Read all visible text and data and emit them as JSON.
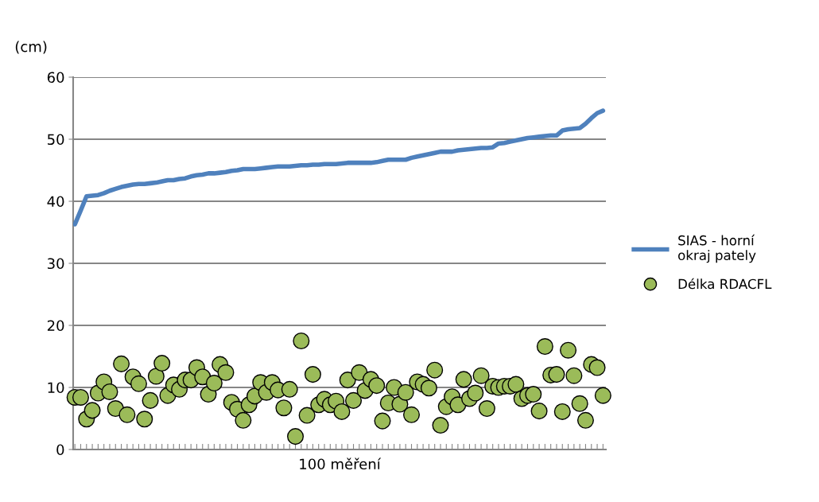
{
  "chart_data": {
    "type": "line",
    "ylabel": "(cm)",
    "xlabel": "100 měření",
    "categories": [
      null,
      null,
      null,
      null,
      null,
      null,
      null,
      null,
      null,
      null,
      null,
      null,
      null,
      null,
      null,
      null,
      null,
      null,
      null,
      null,
      null,
      null,
      null,
      null,
      null,
      null,
      null,
      null,
      null,
      null,
      null,
      null,
      null,
      null,
      null,
      null,
      null,
      null,
      null,
      null,
      null,
      null,
      null,
      null,
      null,
      null,
      null,
      null,
      null,
      null,
      null,
      null,
      null,
      null,
      null,
      null,
      null,
      null,
      null,
      null,
      null,
      null,
      null,
      null,
      null,
      null,
      null,
      null,
      null,
      null,
      null,
      null,
      null,
      null,
      null,
      null,
      null,
      null,
      null,
      null,
      null,
      null,
      null,
      null,
      null,
      null,
      null,
      null,
      null,
      null,
      null,
      null
    ],
    "ylim": [
      0,
      60
    ],
    "yticks": [
      0,
      10,
      20,
      30,
      40,
      50,
      60
    ],
    "grid": "y",
    "legend": "right",
    "tick_labels": "y",
    "series": [
      {
        "name": "SIAS - horní\nokraj pately",
        "color": "#4f81bd",
        "marker": "none",
        "values": [
          36.3,
          38.5,
          40.8,
          40.9,
          41.0,
          41.3,
          41.7,
          42.0,
          42.3,
          42.5,
          42.7,
          42.8,
          42.8,
          42.9,
          43.0,
          43.2,
          43.4,
          43.4,
          43.6,
          43.7,
          44.0,
          44.2,
          44.3,
          44.5,
          44.5,
          44.6,
          44.7,
          44.9,
          45.0,
          45.2,
          45.2,
          45.2,
          45.3,
          45.4,
          45.5,
          45.6,
          45.6,
          45.6,
          45.7,
          45.8,
          45.8,
          45.9,
          45.9,
          46.0,
          46.0,
          46.0,
          46.1,
          46.2,
          46.2,
          46.2,
          46.2,
          46.2,
          46.3,
          46.5,
          46.7,
          46.7,
          46.7,
          46.7,
          47.0,
          47.2,
          47.4,
          47.6,
          47.8,
          48.0,
          48.0,
          48.0,
          48.2,
          48.3,
          48.4,
          48.5,
          48.6,
          48.6,
          48.7,
          49.3,
          49.4,
          49.6,
          49.8,
          50.0,
          50.2,
          50.3,
          50.4,
          50.5,
          50.6,
          50.6,
          51.4,
          51.6,
          51.7,
          51.8,
          52.5,
          53.4,
          54.2,
          54.6
        ]
      },
      {
        "name": "Délka RDACFL",
        "type": "scatter",
        "color": "#9bbb59",
        "marker": "circle",
        "values": [
          8.4,
          8.4,
          4.9,
          6.3,
          9.1,
          10.9,
          9.3,
          6.6,
          13.8,
          5.6,
          11.7,
          10.6,
          4.9,
          7.9,
          11.8,
          13.9,
          8.7,
          10.4,
          9.7,
          11.2,
          11.2,
          13.2,
          11.7,
          8.9,
          10.7,
          13.7,
          12.4,
          7.6,
          6.5,
          4.7,
          7.2,
          8.6,
          10.8,
          9.2,
          10.8,
          9.6,
          6.7,
          9.7,
          2.1,
          17.5,
          5.5,
          12.1,
          7.2,
          8.1,
          7.2,
          7.8,
          6.1,
          11.2,
          7.9,
          12.4,
          9.5,
          11.3,
          10.3,
          4.6,
          7.5,
          10.0,
          7.3,
          9.2,
          5.6,
          10.9,
          10.5,
          9.9,
          12.8,
          3.9,
          6.9,
          8.5,
          7.2,
          11.3,
          8.2,
          9.1,
          11.9,
          6.6,
          10.2,
          10.0,
          10.2,
          10.2,
          10.5,
          8.2,
          8.7,
          8.9,
          6.2,
          16.6,
          12.0,
          12.1,
          6.1,
          16.0,
          11.9,
          7.4,
          4.7,
          13.7,
          13.2,
          8.7
        ]
      }
    ]
  }
}
